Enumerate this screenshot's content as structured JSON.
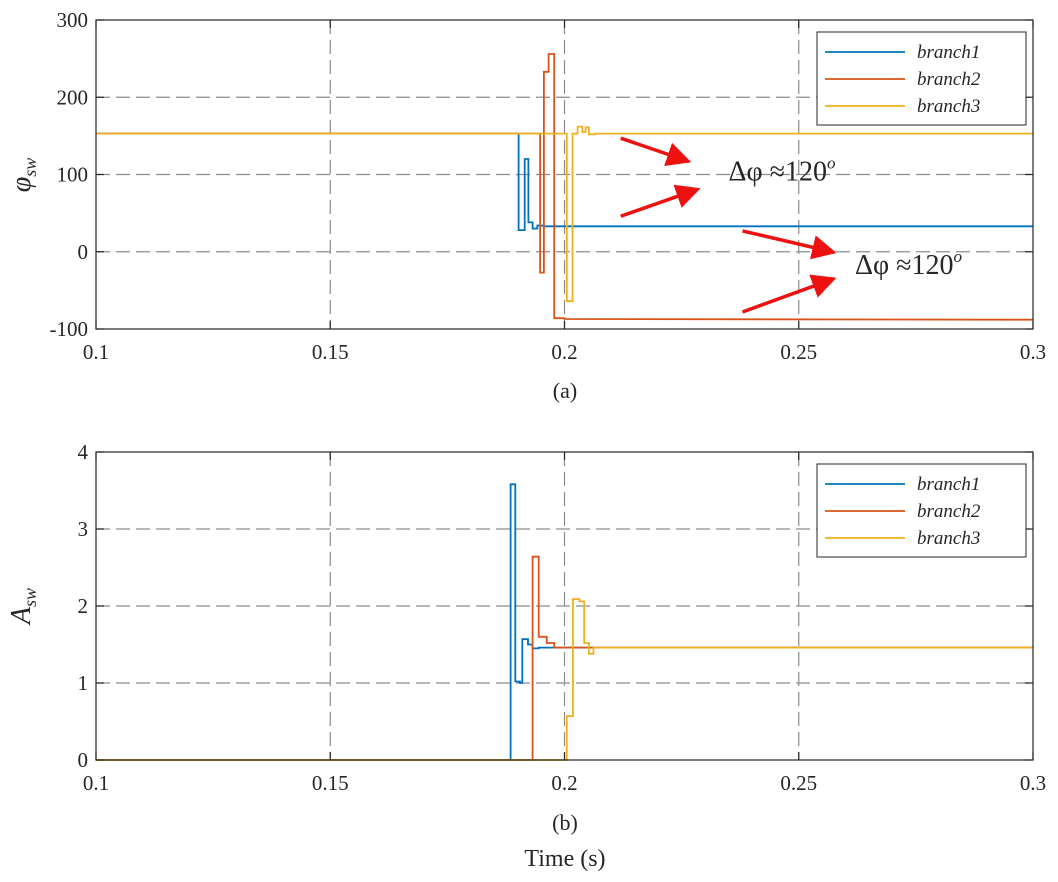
{
  "colors": {
    "branch1": "#0072BD",
    "branch2": "#D95319",
    "branch3": "#EDB120",
    "arrow": "#EE1111"
  },
  "x_axis_label": "Time (s)",
  "chart_data": [
    {
      "type": "line",
      "caption": "(a)",
      "ylabel_base": "φ",
      "ylabel_sub": "sw",
      "xlim": [
        0.1,
        0.3
      ],
      "ylim": [
        -100,
        300
      ],
      "x_ticks": [
        "0.1",
        "0.15",
        "0.2",
        "0.25",
        "0.3"
      ],
      "y_ticks": [
        "-100",
        "0",
        "100",
        "200",
        "300"
      ],
      "grid": true,
      "legend": {
        "position": "top-right",
        "entries": [
          "branch1",
          "branch2",
          "branch3"
        ]
      },
      "annotations": [
        {
          "text": "Δφ ≈120",
          "sup": "o",
          "x": 0.235,
          "y": 92
        },
        {
          "text": "Δφ ≈120",
          "sup": "o",
          "x": 0.262,
          "y": -29
        }
      ],
      "arrows": [
        {
          "from": [
            0.212,
            147
          ],
          "to": [
            0.226,
            118
          ]
        },
        {
          "from": [
            0.212,
            46
          ],
          "to": [
            0.228,
            80
          ]
        },
        {
          "from": [
            0.238,
            27
          ],
          "to": [
            0.257,
            0
          ]
        },
        {
          "from": [
            0.238,
            -78
          ],
          "to": [
            0.257,
            -36
          ]
        }
      ],
      "series": [
        {
          "name": "branch1",
          "color": "#0072BD",
          "points": [
            [
              0.1,
              153
            ],
            [
              0.1902,
              153
            ],
            [
              0.1902,
              28
            ],
            [
              0.1915,
              28
            ],
            [
              0.1915,
              120
            ],
            [
              0.1923,
              120
            ],
            [
              0.1923,
              38
            ],
            [
              0.1932,
              38
            ],
            [
              0.1932,
              30
            ],
            [
              0.1942,
              30
            ],
            [
              0.1942,
              34
            ],
            [
              0.1955,
              34
            ],
            [
              0.1955,
              33
            ],
            [
              0.3,
              33
            ]
          ]
        },
        {
          "name": "branch2",
          "color": "#D95319",
          "points": [
            [
              0.1,
              153
            ],
            [
              0.1948,
              153
            ],
            [
              0.1948,
              -27
            ],
            [
              0.1956,
              -27
            ],
            [
              0.1956,
              233
            ],
            [
              0.1966,
              233
            ],
            [
              0.1966,
              256
            ],
            [
              0.1978,
              256
            ],
            [
              0.1978,
              -86
            ],
            [
              0.2,
              -86
            ],
            [
              0.2,
              -87
            ],
            [
              0.3,
              -88
            ]
          ]
        },
        {
          "name": "branch3",
          "color": "#EDB120",
          "points": [
            [
              0.1,
              153
            ],
            [
              0.2005,
              153
            ],
            [
              0.2005,
              -64
            ],
            [
              0.2017,
              -64
            ],
            [
              0.2017,
              153
            ],
            [
              0.2028,
              153
            ],
            [
              0.2028,
              162
            ],
            [
              0.2038,
              162
            ],
            [
              0.2038,
              155
            ],
            [
              0.2045,
              155
            ],
            [
              0.2045,
              161
            ],
            [
              0.2052,
              161
            ],
            [
              0.2052,
              152
            ],
            [
              0.2065,
              152
            ],
            [
              0.2065,
              153
            ],
            [
              0.3,
              153
            ]
          ]
        }
      ]
    },
    {
      "type": "line",
      "caption": "(b)",
      "ylabel_base": "A",
      "ylabel_sub": "sw",
      "xlim": [
        0.1,
        0.3
      ],
      "ylim": [
        0,
        4
      ],
      "x_ticks": [
        "0.1",
        "0.15",
        "0.2",
        "0.25",
        "0.3"
      ],
      "y_ticks": [
        "0",
        "1",
        "2",
        "3",
        "4"
      ],
      "grid": true,
      "legend": {
        "position": "top-right",
        "entries": [
          "branch1",
          "branch2",
          "branch3"
        ]
      },
      "annotations": [],
      "arrows": [],
      "series": [
        {
          "name": "branch1",
          "color": "#0072BD",
          "points": [
            [
              0.1,
              0
            ],
            [
              0.1885,
              0
            ],
            [
              0.1885,
              3.58
            ],
            [
              0.1895,
              3.58
            ],
            [
              0.1895,
              1.02
            ],
            [
              0.1905,
              1.02
            ],
            [
              0.1905,
              1.0
            ],
            [
              0.191,
              1.0
            ],
            [
              0.191,
              1.57
            ],
            [
              0.1922,
              1.57
            ],
            [
              0.1922,
              1.5
            ],
            [
              0.1932,
              1.5
            ],
            [
              0.1932,
              1.45
            ],
            [
              0.1945,
              1.45
            ],
            [
              0.1945,
              1.46
            ],
            [
              0.3,
              1.46
            ]
          ]
        },
        {
          "name": "branch2",
          "color": "#D95319",
          "points": [
            [
              0.1,
              0
            ],
            [
              0.1932,
              0
            ],
            [
              0.1932,
              2.64
            ],
            [
              0.1945,
              2.64
            ],
            [
              0.1945,
              1.6
            ],
            [
              0.1962,
              1.6
            ],
            [
              0.1962,
              1.52
            ],
            [
              0.1978,
              1.52
            ],
            [
              0.1978,
              1.46
            ],
            [
              0.3,
              1.46
            ]
          ]
        },
        {
          "name": "branch3",
          "color": "#EDB120",
          "points": [
            [
              0.1,
              0
            ],
            [
              0.2005,
              0
            ],
            [
              0.2005,
              0.57
            ],
            [
              0.2018,
              0.57
            ],
            [
              0.2018,
              2.09
            ],
            [
              0.2032,
              2.09
            ],
            [
              0.2032,
              2.06
            ],
            [
              0.2042,
              2.06
            ],
            [
              0.2042,
              1.52
            ],
            [
              0.2052,
              1.52
            ],
            [
              0.2052,
              1.38
            ],
            [
              0.2062,
              1.38
            ],
            [
              0.2062,
              1.46
            ],
            [
              0.3,
              1.46
            ]
          ]
        }
      ]
    }
  ]
}
